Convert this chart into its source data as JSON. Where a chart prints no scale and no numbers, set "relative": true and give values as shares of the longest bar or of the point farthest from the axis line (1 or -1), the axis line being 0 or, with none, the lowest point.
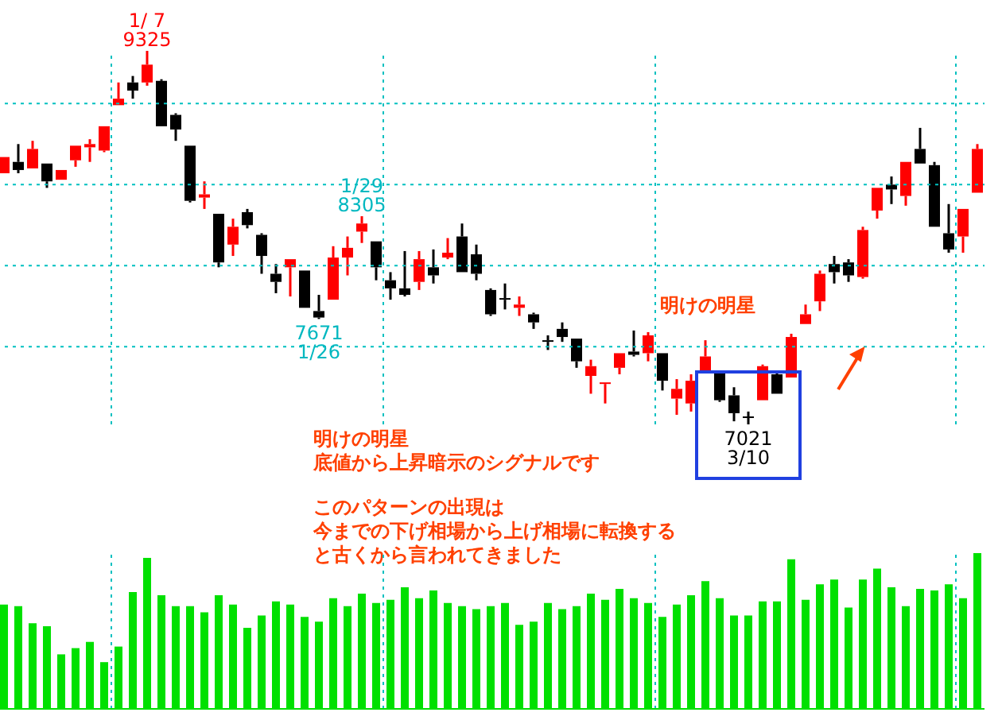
{
  "chart_data": [
    {
      "type": "candlestick",
      "categories": [
        null,
        null,
        null,
        null,
        null,
        null,
        null,
        null,
        null,
        null,
        null,
        null,
        null,
        null,
        null,
        null,
        null,
        null,
        null,
        null,
        null,
        null,
        null,
        null,
        null,
        null,
        null,
        null,
        null,
        null,
        null,
        null,
        null,
        null,
        null,
        null,
        null,
        null,
        null,
        null,
        null,
        null,
        null,
        null,
        null,
        null,
        null,
        null,
        null,
        null,
        null,
        null,
        null,
        null,
        null,
        null,
        null,
        null,
        null,
        null,
        null,
        null,
        null,
        null,
        null,
        null,
        null,
        null,
        null
      ],
      "ohlc": [
        [
          8570,
          8670,
          8570,
          8670
        ],
        [
          8640,
          8750,
          8570,
          8590
        ],
        [
          8600,
          8770,
          8600,
          8720
        ],
        [
          8630,
          8630,
          8480,
          8520
        ],
        [
          8530,
          8590,
          8530,
          8590
        ],
        [
          8650,
          8740,
          8610,
          8740
        ],
        [
          8730,
          8780,
          8640,
          8750
        ],
        [
          8710,
          8860,
          8700,
          8860
        ],
        [
          8990,
          9130,
          8990,
          9030
        ],
        [
          9130,
          9170,
          9030,
          9080
        ],
        [
          9130,
          9325,
          9110,
          9240
        ],
        [
          9140,
          9150,
          8860,
          8860
        ],
        [
          8930,
          8940,
          8770,
          8840
        ],
        [
          8740,
          8740,
          8390,
          8400
        ],
        [
          8420,
          8520,
          8350,
          8440
        ],
        [
          8320,
          8320,
          7990,
          8020
        ],
        [
          8130,
          8290,
          8060,
          8240
        ],
        [
          8330,
          8350,
          8230,
          8250
        ],
        [
          8190,
          8200,
          7950,
          8060
        ],
        [
          7950,
          8010,
          7830,
          7900
        ],
        [
          7990,
          8040,
          7810,
          8040
        ],
        [
          7970,
          7970,
          7740,
          7740
        ],
        [
          7720,
          7820,
          7671,
          7680
        ],
        [
          7790,
          8120,
          7790,
          8050
        ],
        [
          8050,
          8180,
          7940,
          8110
        ],
        [
          8210,
          8305,
          8140,
          8260
        ],
        [
          8150,
          8150,
          7910,
          7990
        ],
        [
          7910,
          7960,
          7790,
          7860
        ],
        [
          7860,
          8090,
          7810,
          7820
        ],
        [
          7900,
          8090,
          7850,
          8040
        ],
        [
          7990,
          8100,
          7890,
          7940
        ],
        [
          8050,
          8170,
          8040,
          8080
        ],
        [
          8180,
          8260,
          7960,
          7960
        ],
        [
          8070,
          8130,
          7910,
          7950
        ],
        [
          7850,
          7860,
          7690,
          7700
        ],
        [
          7800,
          7890,
          7730,
          7790
        ],
        [
          7740,
          7810,
          7690,
          7760
        ],
        [
          7700,
          7710,
          7610,
          7650
        ],
        [
          7540,
          7570,
          7480,
          7540
        ],
        [
          7610,
          7650,
          7530,
          7560
        ],
        [
          7550,
          7550,
          7370,
          7410
        ],
        [
          7320,
          7420,
          7210,
          7380
        ],
        [
          7280,
          7280,
          7150,
          7280
        ],
        [
          7370,
          7460,
          7330,
          7460
        ],
        [
          7470,
          7600,
          7440,
          7450
        ],
        [
          7460,
          7590,
          7410,
          7570
        ],
        [
          7460,
          7460,
          7230,
          7290
        ],
        [
          7180,
          7300,
          7080,
          7240
        ],
        [
          7150,
          7330,
          7100,
          7290
        ],
        [
          7350,
          7540,
          7350,
          7440
        ],
        [
          7340,
          7340,
          7160,
          7170
        ],
        [
          7200,
          7250,
          7040,
          7090
        ],
        [
          7070,
          7100,
          7021,
          7070
        ],
        [
          7170,
          7390,
          7170,
          7380
        ],
        [
          7330,
          7350,
          7210,
          7210
        ],
        [
          7310,
          7580,
          7310,
          7560
        ],
        [
          7640,
          7760,
          7640,
          7700
        ],
        [
          7780,
          7970,
          7720,
          7950
        ],
        [
          8010,
          8060,
          7890,
          7960
        ],
        [
          8020,
          8040,
          7900,
          7940
        ],
        [
          7930,
          8240,
          7920,
          8220
        ],
        [
          8340,
          8480,
          8290,
          8480
        ],
        [
          8500,
          8550,
          8380,
          8470
        ],
        [
          8430,
          8640,
          8370,
          8640
        ],
        [
          8720,
          8850,
          8630,
          8630
        ],
        [
          8620,
          8640,
          8240,
          8240
        ],
        [
          8200,
          8380,
          8080,
          8100
        ],
        [
          8180,
          8350,
          8080,
          8350
        ],
        [
          8450,
          8750,
          8450,
          8720
        ]
      ],
      "colors": [
        "#ff0000",
        "#000000",
        "#ff0000",
        "#000000",
        "#ff0000",
        "#ff0000",
        "#ff0000",
        "#ff0000",
        "#ff0000",
        "#000000",
        "#ff0000",
        "#000000",
        "#000000",
        "#000000",
        "#ff0000",
        "#000000",
        "#ff0000",
        "#000000",
        "#000000",
        "#000000",
        "#ff0000",
        "#000000",
        "#000000",
        "#ff0000",
        "#ff0000",
        "#ff0000",
        "#000000",
        "#000000",
        "#000000",
        "#ff0000",
        "#000000",
        "#ff0000",
        "#000000",
        "#000000",
        "#000000",
        "#000000",
        "#ff0000",
        "#000000",
        "#000000",
        "#000000",
        "#000000",
        "#ff0000",
        "#ff0000",
        "#ff0000",
        "#000000",
        "#ff0000",
        "#000000",
        "#ff0000",
        "#ff0000",
        "#ff0000",
        "#000000",
        "#000000",
        "#000000",
        "#ff0000",
        "#000000",
        "#ff0000",
        "#ff0000",
        "#ff0000",
        "#000000",
        "#000000",
        "#ff0000",
        "#ff0000",
        "#000000",
        "#ff0000",
        "#000000",
        "#000000",
        "#000000",
        "#ff0000",
        "#ff0000"
      ],
      "yticks": [
        {
          "value": 9000,
          "label": null
        },
        {
          "value": 8500,
          "label": null
        },
        {
          "value": 8000,
          "label": null
        },
        {
          "value": 7500,
          "label": null
        }
      ],
      "grid": true,
      "tick_labels": false,
      "annotations": [
        {
          "text": "1/ 7\n9325",
          "y": 9325
        },
        {
          "text": "1/29\n8305",
          "y": 8305
        },
        {
          "text": "7671\n1/26",
          "y": 7671
        },
        {
          "text": "7021\n3/10",
          "y": 7021
        },
        "明けの明星",
        "明けの明星",
        "底値から上昇暗示のシグナルです",
        "このパターンの出現は",
        "今までの下げ相場から上げ相場に転換する",
        "と古くから言われてきました"
      ]
    },
    {
      "type": "bar",
      "relative": true,
      "categories": [
        null,
        null,
        null,
        null,
        null,
        null,
        null,
        null,
        null,
        null,
        null,
        null,
        null,
        null,
        null,
        null,
        null,
        null,
        null,
        null,
        null,
        null,
        null,
        null,
        null,
        null,
        null,
        null,
        null,
        null,
        null,
        null,
        null,
        null,
        null,
        null,
        null,
        null,
        null,
        null,
        null,
        null,
        null,
        null,
        null,
        null,
        null,
        null,
        null,
        null,
        null,
        null,
        null,
        null,
        null,
        null,
        null,
        null,
        null,
        null,
        null,
        null,
        null,
        null,
        null,
        null,
        null,
        null,
        null
      ],
      "values": [
        0.67,
        0.66,
        0.55,
        0.53,
        0.35,
        0.39,
        0.43,
        0.3,
        0.4,
        0.75,
        0.97,
        0.73,
        0.66,
        0.66,
        0.62,
        0.73,
        0.67,
        0.52,
        0.6,
        0.69,
        0.67,
        0.59,
        0.56,
        0.71,
        0.66,
        0.74,
        0.68,
        0.7,
        0.78,
        0.71,
        0.76,
        0.68,
        0.66,
        0.64,
        0.66,
        0.68,
        0.54,
        0.56,
        0.68,
        0.64,
        0.66,
        0.74,
        0.7,
        0.77,
        0.71,
        0.68,
        0.59,
        0.67,
        0.73,
        0.82,
        0.71,
        0.6,
        0.6,
        0.69,
        0.69,
        0.96,
        0.7,
        0.8,
        0.83,
        0.65,
        0.83,
        0.9,
        0.78,
        0.66,
        0.77,
        0.76,
        0.8,
        0.71,
        1
      ],
      "color": "#00e000",
      "grid": "x",
      "tick_labels": false
    }
  ]
}
